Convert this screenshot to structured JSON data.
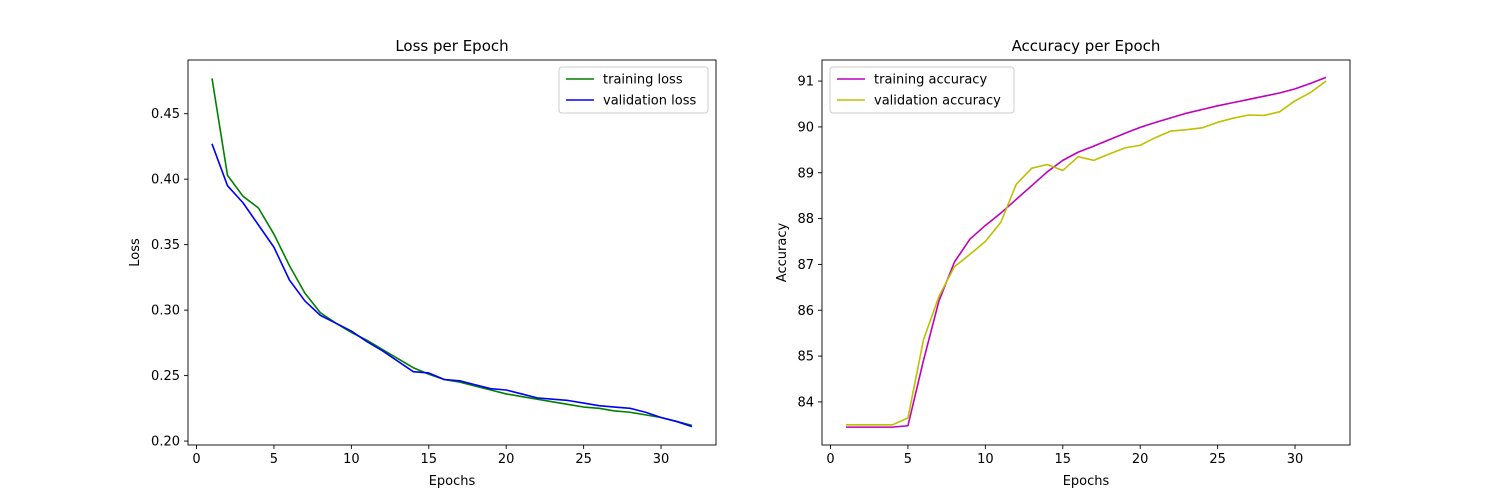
{
  "chart_data": [
    {
      "type": "line",
      "title": "Loss per Epoch",
      "xlabel": "Epochs",
      "ylabel": "Loss",
      "xlim": [
        -0.55,
        33.55
      ],
      "ylim": [
        0.197,
        0.491
      ],
      "xticks": [
        0,
        5,
        10,
        15,
        20,
        25,
        30
      ],
      "yticks": [
        0.2,
        0.25,
        0.3,
        0.35,
        0.4,
        0.45
      ],
      "ytick_labels": [
        "0.20",
        "0.25",
        "0.30",
        "0.35",
        "0.40",
        "0.45"
      ],
      "xtick_labels": [
        "0",
        "5",
        "10",
        "15",
        "20",
        "25",
        "30"
      ],
      "legend_position": "top-right",
      "grid": false,
      "x": [
        1,
        2,
        3,
        4,
        5,
        6,
        7,
        8,
        9,
        10,
        11,
        12,
        13,
        14,
        15,
        16,
        17,
        18,
        19,
        20,
        21,
        22,
        23,
        24,
        25,
        26,
        27,
        28,
        29,
        30,
        31,
        32
      ],
      "series": [
        {
          "name": "training loss",
          "color": "#008000",
          "values": [
            0.477,
            0.403,
            0.387,
            0.378,
            0.358,
            0.334,
            0.313,
            0.298,
            0.29,
            0.283,
            0.277,
            0.27,
            0.263,
            0.256,
            0.251,
            0.247,
            0.245,
            0.242,
            0.239,
            0.236,
            0.234,
            0.232,
            0.23,
            0.228,
            0.226,
            0.225,
            0.223,
            0.222,
            0.22,
            0.218,
            0.215,
            0.212
          ]
        },
        {
          "name": "validation loss",
          "color": "#0000ff",
          "values": [
            0.427,
            0.395,
            0.382,
            0.365,
            0.348,
            0.323,
            0.307,
            0.296,
            0.29,
            0.284,
            0.276,
            0.269,
            0.261,
            0.253,
            0.252,
            0.247,
            0.246,
            0.243,
            0.24,
            0.239,
            0.236,
            0.233,
            0.232,
            0.231,
            0.229,
            0.227,
            0.226,
            0.225,
            0.222,
            0.218,
            0.215,
            0.211
          ]
        }
      ]
    },
    {
      "type": "line",
      "title": "Accuracy per Epoch",
      "xlabel": "Epochs",
      "ylabel": "Accuracy",
      "xlim": [
        -0.55,
        33.55
      ],
      "ylim": [
        83.06,
        91.46
      ],
      "xticks": [
        0,
        5,
        10,
        15,
        20,
        25,
        30
      ],
      "yticks": [
        84,
        85,
        86,
        87,
        88,
        89,
        90,
        91
      ],
      "ytick_labels": [
        "84",
        "85",
        "86",
        "87",
        "88",
        "89",
        "90",
        "91"
      ],
      "xtick_labels": [
        "0",
        "5",
        "10",
        "15",
        "20",
        "25",
        "30"
      ],
      "legend_position": "top-left",
      "grid": false,
      "x": [
        1,
        2,
        3,
        4,
        5,
        6,
        7,
        8,
        9,
        10,
        11,
        12,
        13,
        14,
        15,
        16,
        17,
        18,
        19,
        20,
        21,
        22,
        23,
        24,
        25,
        26,
        27,
        28,
        29,
        30,
        31,
        32
      ],
      "series": [
        {
          "name": "training accuracy",
          "color": "#bf00bf",
          "values": [
            83.45,
            83.45,
            83.45,
            83.45,
            83.48,
            84.9,
            86.2,
            87.05,
            87.55,
            87.85,
            88.12,
            88.42,
            88.72,
            89.02,
            89.27,
            89.45,
            89.58,
            89.72,
            89.86,
            89.99,
            90.1,
            90.2,
            90.3,
            90.38,
            90.46,
            90.53,
            90.6,
            90.67,
            90.74,
            90.83,
            90.95,
            91.08
          ]
        },
        {
          "name": "validation accuracy",
          "color": "#bfbf00",
          "values": [
            83.5,
            83.5,
            83.5,
            83.5,
            83.65,
            85.35,
            86.3,
            86.95,
            87.22,
            87.5,
            87.92,
            88.75,
            89.1,
            89.18,
            89.05,
            89.35,
            89.27,
            89.41,
            89.54,
            89.6,
            89.77,
            89.91,
            89.94,
            89.98,
            90.1,
            90.19,
            90.26,
            90.25,
            90.33,
            90.57,
            90.75,
            91.0
          ]
        }
      ]
    }
  ]
}
